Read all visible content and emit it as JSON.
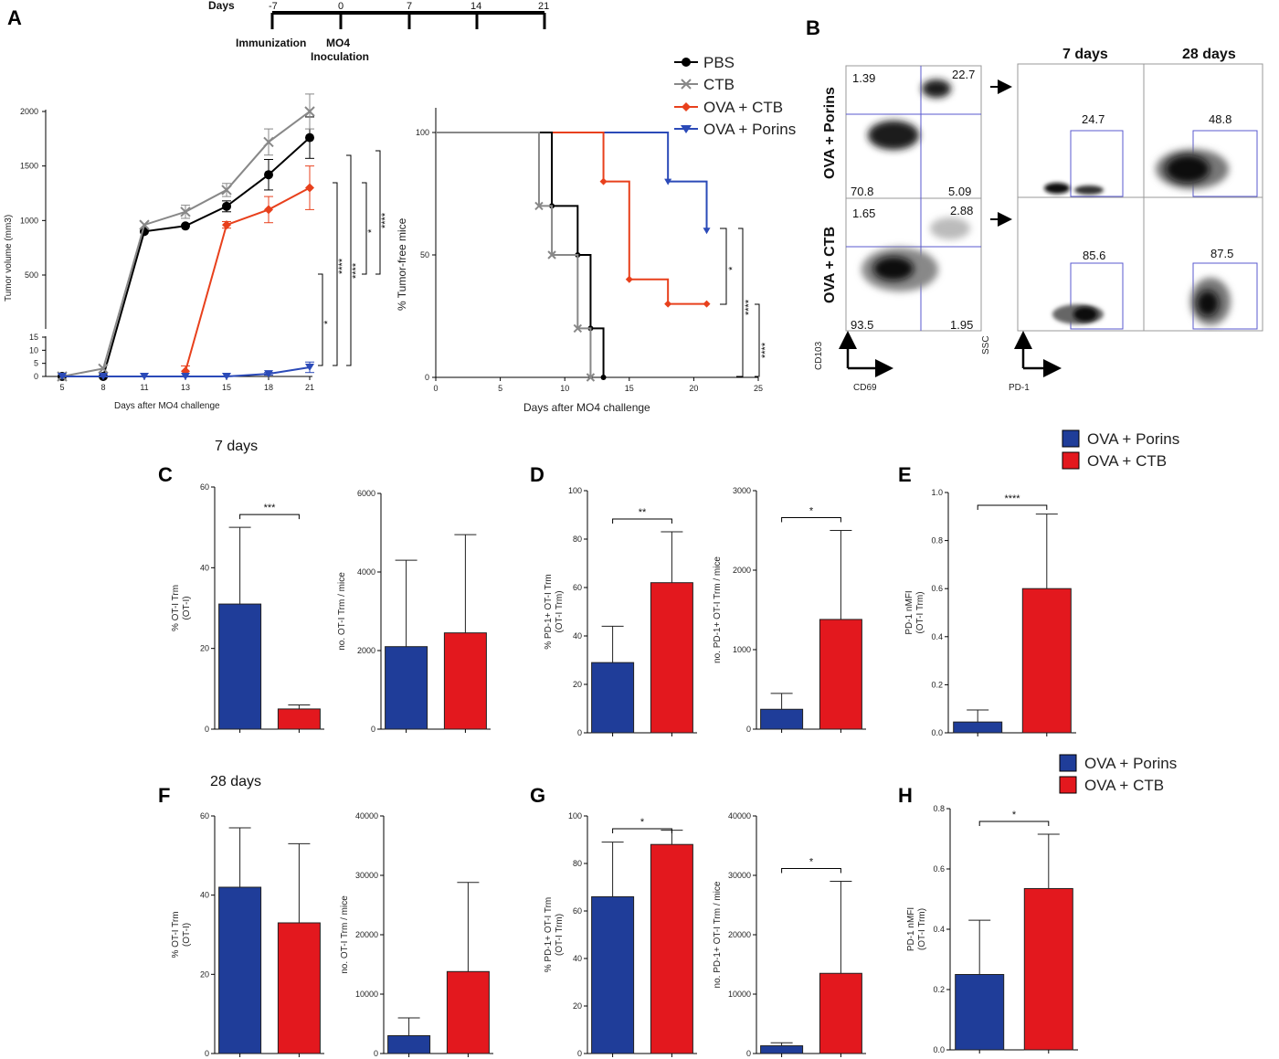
{
  "colors": {
    "porins": "#1f3d99",
    "ctb": "#e3181e",
    "pbs": "#000000",
    "ctb_line": "#888888",
    "ova_ctb_line": "#e8401c",
    "ova_porins_line": "#2b4ab8"
  },
  "panel_labels": [
    "A",
    "B",
    "C",
    "D",
    "E",
    "F",
    "G",
    "H"
  ],
  "timeline": {
    "title": "Days",
    "ticks": [
      "-7",
      "0",
      "7",
      "14",
      "21"
    ],
    "events": [
      {
        "day": "-7",
        "label": "Immunization"
      },
      {
        "day": "0",
        "label": "MO4",
        "label2": "Inoculation"
      }
    ]
  },
  "legend_A": [
    "PBS",
    "CTB",
    "OVA + CTB",
    "OVA + Porins"
  ],
  "legend_bars": [
    "OVA + Porins",
    "OVA + CTB"
  ],
  "section_titles": {
    "top": "7 days",
    "bottom": "28 days"
  },
  "flow": {
    "row_labels": [
      "OVA + Porins",
      "OVA + CTB"
    ],
    "col_titles": [
      "7 days",
      "28 days"
    ],
    "axes_left": {
      "y": "CD103",
      "x": "CD69"
    },
    "axes_right": {
      "y": "SSC",
      "x": "PD-1"
    },
    "quadrants": [
      {
        "ul": "1.39",
        "ur": "22.7",
        "ll": "70.8",
        "lr": "5.09"
      },
      {
        "ul": "1.65",
        "ur": "2.88",
        "ll": "93.5",
        "lr": "1.95"
      }
    ],
    "gates": [
      [
        "24.7",
        "48.8"
      ],
      [
        "85.6",
        "87.5"
      ]
    ]
  },
  "chart_data": [
    {
      "id": "A1",
      "type": "line",
      "title": "",
      "xlabel": "Days after MO4 challenge",
      "ylabel": "Tumor volume (mm3)",
      "x": [
        5,
        8,
        11,
        13,
        15,
        18,
        21
      ],
      "yticks_upper": [
        "500",
        "1000",
        "1500",
        "2000"
      ],
      "yticks_lower": [
        "0",
        "5",
        "10",
        "15"
      ],
      "series": [
        {
          "name": "PBS",
          "x": [
            5,
            8,
            11,
            13,
            15,
            18,
            21
          ],
          "values": [
            0,
            0,
            900,
            950,
            1130,
            1420,
            1760
          ],
          "err": [
            0,
            0,
            0,
            0,
            50,
            140,
            190
          ]
        },
        {
          "name": "CTB",
          "x": [
            5,
            8,
            11,
            13,
            15,
            18,
            21
          ],
          "values": [
            0,
            3,
            960,
            1080,
            1280,
            1720,
            2000
          ],
          "err": [
            0,
            0,
            0,
            60,
            60,
            120,
            160
          ]
        },
        {
          "name": "OVA + CTB",
          "x": [
            13,
            15,
            18,
            21
          ],
          "values": [
            2,
            960,
            1100,
            1300
          ],
          "err": [
            2,
            30,
            120,
            200
          ]
        },
        {
          "name": "OVA + Porins",
          "x": [
            5,
            8,
            11,
            13,
            15,
            18,
            21
          ],
          "values": [
            0,
            0,
            0,
            0,
            0,
            1,
            3.5
          ],
          "err": [
            0,
            0,
            0,
            0,
            0,
            0.5,
            2
          ]
        }
      ],
      "significance": [
        "*",
        "****",
        "****",
        "*",
        "****"
      ]
    },
    {
      "id": "A2",
      "type": "line",
      "title": "",
      "xlabel": "Days after MO4 challenge",
      "ylabel": "% Tumor-free mice",
      "xlim": [
        0,
        25
      ],
      "ylim": [
        0,
        100
      ],
      "xticks": [
        "0",
        "5",
        "10",
        "15",
        "20",
        "25"
      ],
      "yticks": [
        "0",
        "50",
        "100"
      ],
      "series": [
        {
          "name": "PBS",
          "x": [
            0,
            9,
            11,
            12,
            13
          ],
          "values": [
            100,
            70,
            50,
            20,
            0
          ]
        },
        {
          "name": "CTB",
          "x": [
            0,
            8,
            9,
            11,
            12
          ],
          "values": [
            100,
            70,
            50,
            20,
            0
          ]
        },
        {
          "name": "OVA + CTB",
          "x": [
            0,
            13,
            15,
            18,
            21
          ],
          "values": [
            100,
            80,
            40,
            30,
            30
          ]
        },
        {
          "name": "OVA + Porins",
          "x": [
            0,
            18,
            21
          ],
          "values": [
            100,
            80,
            60
          ]
        }
      ],
      "significance": [
        "*",
        "****",
        "****"
      ]
    },
    {
      "id": "C1",
      "type": "bar",
      "ylabel": "% OT-I Trm",
      "ylabel2": "(OT-I)",
      "ylim": [
        0,
        60
      ],
      "yticks": [
        "0",
        "20",
        "40",
        "60"
      ],
      "categories": [
        "OVA + Porins",
        "OVA + CTB"
      ],
      "values": [
        31,
        5
      ],
      "err": [
        19,
        1
      ],
      "sig": "***"
    },
    {
      "id": "C2",
      "type": "bar",
      "ylabel": "no. OT-I Trm / mice",
      "ylim": [
        0,
        6000
      ],
      "yticks": [
        "0",
        "2000",
        "4000",
        "6000"
      ],
      "categories": [
        "OVA + Porins",
        "OVA + CTB"
      ],
      "values": [
        2100,
        2450
      ],
      "err": [
        2200,
        2500
      ],
      "sig": ""
    },
    {
      "id": "D1",
      "type": "bar",
      "ylabel": "% PD-1+ OT-I Trm",
      "ylabel2": "(OT-I Trm)",
      "ylim": [
        0,
        100
      ],
      "yticks": [
        "0",
        "20",
        "40",
        "60",
        "80",
        "100"
      ],
      "categories": [
        "OVA + Porins",
        "OVA + CTB"
      ],
      "values": [
        29,
        62
      ],
      "err": [
        15,
        21
      ],
      "sig": "**"
    },
    {
      "id": "D2",
      "type": "bar",
      "ylabel": "no. PD-1+ OT-I Trm / mice",
      "ylim": [
        0,
        3000
      ],
      "yticks": [
        "0",
        "1000",
        "2000",
        "3000"
      ],
      "categories": [
        "OVA + Porins",
        "OVA + CTB"
      ],
      "values": [
        250,
        1380
      ],
      "err": [
        200,
        1120
      ],
      "sig": "*"
    },
    {
      "id": "E",
      "type": "bar",
      "ylabel": "PD-1 nMFI",
      "ylabel2": "(OT-I Trm)",
      "ylim": [
        0,
        1.0
      ],
      "yticks": [
        "0.0",
        "0.2",
        "0.4",
        "0.6",
        "0.8",
        "1.0"
      ],
      "categories": [
        "OVA + Porins",
        "OVA + CTB"
      ],
      "values": [
        0.045,
        0.6
      ],
      "err": [
        0.05,
        0.31
      ],
      "sig": "****"
    },
    {
      "id": "F1",
      "type": "bar",
      "ylabel": "% OT-I Trm",
      "ylabel2": "(OT-I)",
      "ylim": [
        0,
        60
      ],
      "yticks": [
        "0",
        "20",
        "40",
        "60"
      ],
      "categories": [
        "OVA + Porins",
        "OVA + CTB"
      ],
      "values": [
        42,
        33
      ],
      "err": [
        15,
        20
      ],
      "sig": ""
    },
    {
      "id": "F2",
      "type": "bar",
      "ylabel": "no. OT-I Trm / mice",
      "ylim": [
        0,
        40000
      ],
      "yticks": [
        "0",
        "10000",
        "20000",
        "30000",
        "40000"
      ],
      "categories": [
        "OVA + Porins",
        "OVA + CTB"
      ],
      "values": [
        3000,
        13800
      ],
      "err": [
        3000,
        15000
      ],
      "sig": ""
    },
    {
      "id": "G1",
      "type": "bar",
      "ylabel": "% PD-1+ OT-I Trm",
      "ylabel2": "(OT-I Trm)",
      "ylim": [
        0,
        100
      ],
      "yticks": [
        "0",
        "20",
        "40",
        "60",
        "80",
        "100"
      ],
      "categories": [
        "OVA + Porins",
        "OVA + CTB"
      ],
      "values": [
        66,
        88
      ],
      "err": [
        23,
        6
      ],
      "sig": "*"
    },
    {
      "id": "G2",
      "type": "bar",
      "ylabel": "no. PD-1+ OT-I Trm / mice",
      "ylim": [
        0,
        40000
      ],
      "yticks": [
        "0",
        "10000",
        "20000",
        "30000",
        "40000"
      ],
      "categories": [
        "OVA + Porins",
        "OVA + CTB"
      ],
      "values": [
        1300,
        13500
      ],
      "err": [
        500,
        15500
      ],
      "sig": "*"
    },
    {
      "id": "H",
      "type": "bar",
      "ylabel": "PD-1 nMFI",
      "ylabel2": "(OT-I Trm)",
      "ylim": [
        0,
        0.8
      ],
      "yticks": [
        "0.0",
        "0.2",
        "0.4",
        "0.6",
        "0.8"
      ],
      "categories": [
        "OVA + Porins",
        "OVA + CTB"
      ],
      "values": [
        0.25,
        0.535
      ],
      "err": [
        0.18,
        0.18
      ],
      "sig": "*"
    }
  ]
}
